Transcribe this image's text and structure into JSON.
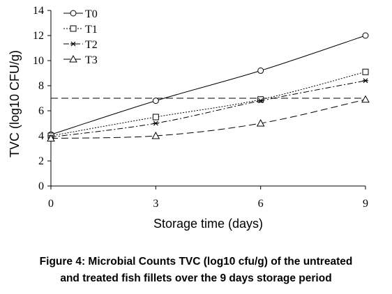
{
  "chart_data": {
    "type": "line",
    "xlabel": "Storage time (days)",
    "ylabel": "TVC (log10 CFU/g)",
    "x": [
      0,
      3,
      6,
      9
    ],
    "x_ticks": [
      "0",
      "3",
      "6",
      "9"
    ],
    "xlim": [
      0,
      9
    ],
    "ylim": [
      0,
      14
    ],
    "y_ticks": [
      "0",
      "2",
      "4",
      "6",
      "8",
      "10",
      "12",
      "14"
    ],
    "grid": false,
    "legend_position": "top-left",
    "reference_line": {
      "y": 7,
      "style": "dashed"
    },
    "series": [
      {
        "name": "T0",
        "values": [
          4.1,
          6.8,
          9.2,
          12.0
        ],
        "marker": "circle",
        "line": "solid"
      },
      {
        "name": "T1",
        "values": [
          4.0,
          5.5,
          6.9,
          9.1
        ],
        "marker": "square",
        "line": "dotted"
      },
      {
        "name": "T2",
        "values": [
          3.9,
          5.0,
          6.8,
          8.4
        ],
        "marker": "star",
        "line": "dashdot"
      },
      {
        "name": "T3",
        "values": [
          3.8,
          4.0,
          5.0,
          6.9
        ],
        "marker": "triangle",
        "line": "dashed"
      }
    ]
  },
  "caption": {
    "line1": "Figure 4: Microbial Counts TVC (log10 cfu/g) of the untreated",
    "line2": "and treated fish fillets over the 9 days storage period"
  }
}
